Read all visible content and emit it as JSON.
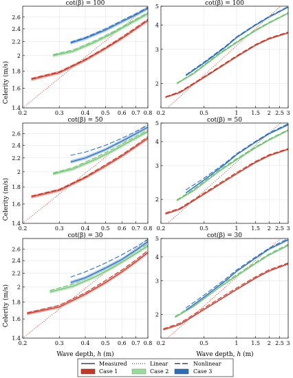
{
  "figure": {
    "ylabel": "Celerity (m/s)",
    "xlabel_main": "Wave depth, ",
    "xlabel_var": "h",
    "xlabel_unit": " (m)",
    "legend": {
      "line_items": [
        "Measured",
        "Linear",
        "Nonlinear"
      ],
      "case_items": [
        "Case 1",
        "Case 2",
        "Case 3"
      ]
    },
    "colors": {
      "case1": "#c0392b",
      "case2": "#6fbf73",
      "case3": "#2e6db4",
      "case1_band": "#e8a8a0",
      "case2_band": "#b9e3b9",
      "case3_band": "#9fc2e6"
    }
  },
  "chart_data": [
    {
      "type": "line",
      "title": "cot(β) = 100",
      "xscale": "log",
      "yscale": "log",
      "xlim": [
        0.2,
        0.8
      ],
      "ylim": [
        1.4,
        2.8
      ],
      "xticks": [
        "0.2",
        "0.3",
        "0.4",
        "0.5",
        "0.6",
        "0.7",
        "0.8"
      ],
      "yticks": [
        "1.4",
        "1.6",
        "1.8",
        "2",
        "2.2",
        "2.4",
        "2.6"
      ],
      "linear": {
        "x": [
          0.2,
          0.4,
          0.6,
          0.8
        ],
        "y": [
          1.4,
          1.98,
          2.42,
          2.8
        ]
      },
      "series": [
        {
          "name": "Case 1",
          "measured": {
            "x": [
              0.22,
              0.3,
              0.4,
              0.5,
              0.6,
              0.7,
              0.8
            ],
            "y": [
              1.7,
              1.78,
              1.94,
              2.1,
              2.25,
              2.4,
              2.54
            ]
          },
          "nonlinear": {
            "x": [
              0.22,
              0.3,
              0.4,
              0.5,
              0.6,
              0.7,
              0.8
            ],
            "y": [
              1.71,
              1.79,
              1.95,
              2.11,
              2.27,
              2.42,
              2.56
            ]
          }
        },
        {
          "name": "Case 2",
          "measured": {
            "x": [
              0.28,
              0.35,
              0.45,
              0.55,
              0.65,
              0.8
            ],
            "y": [
              2.0,
              2.06,
              2.2,
              2.34,
              2.48,
              2.66
            ]
          },
          "nonlinear": {
            "x": [
              0.28,
              0.35,
              0.45,
              0.55,
              0.65,
              0.8
            ],
            "y": [
              2.01,
              2.08,
              2.22,
              2.36,
              2.5,
              2.68
            ]
          }
        },
        {
          "name": "Case 3",
          "measured": {
            "x": [
              0.34,
              0.4,
              0.5,
              0.6,
              0.7,
              0.8
            ],
            "y": [
              2.18,
              2.25,
              2.38,
              2.52,
              2.64,
              2.76
            ]
          },
          "nonlinear": {
            "x": [
              0.34,
              0.4,
              0.5,
              0.6,
              0.7,
              0.8
            ],
            "y": [
              2.19,
              2.26,
              2.4,
              2.54,
              2.66,
              2.78
            ]
          }
        }
      ]
    },
    {
      "type": "line",
      "title": "cot(β) = 100",
      "xscale": "log",
      "yscale": "log",
      "xlim": [
        0.2,
        3
      ],
      "ylim": [
        1.5,
        5
      ],
      "xticks": [
        "0.2",
        "0.5",
        "1",
        "1.5",
        "2",
        "2.5",
        "3"
      ],
      "yticks": [
        "2",
        "3",
        "4",
        "5"
      ],
      "linear": {
        "x": [
          0.2,
          0.5,
          1,
          2,
          3
        ],
        "y": [
          1.4,
          2.21,
          3.13,
          4.43,
          5.42
        ]
      },
      "series": [
        {
          "name": "Case 1",
          "measured": {
            "x": [
              0.22,
              0.3,
              0.5,
              1,
              1.5,
              2,
              3
            ],
            "y": [
              1.7,
              1.8,
              2.15,
              2.75,
              3.15,
              3.4,
              3.65
            ]
          },
          "nonlinear": {
            "x": [
              0.22,
              0.3,
              0.5,
              1,
              1.5,
              2,
              3
            ],
            "y": [
              1.71,
              1.82,
              2.17,
              2.78,
              3.18,
              3.43,
              3.68
            ]
          }
        },
        {
          "name": "Case 2",
          "measured": {
            "x": [
              0.28,
              0.4,
              0.7,
              1,
              1.5,
              2,
              3
            ],
            "y": [
              2.0,
              2.25,
              2.85,
              3.25,
              3.75,
              4.1,
              4.6
            ]
          },
          "nonlinear": {
            "x": [
              0.28,
              0.4,
              0.7,
              1,
              1.5,
              2,
              3
            ],
            "y": [
              2.01,
              2.27,
              2.88,
              3.28,
              3.78,
              4.13,
              4.63
            ]
          }
        },
        {
          "name": "Case 3",
          "measured": {
            "x": [
              0.34,
              0.5,
              0.8,
              1,
              1.5,
              2,
              3
            ],
            "y": [
              2.2,
              2.55,
              3.1,
              3.45,
              4.0,
              4.4,
              4.95
            ]
          },
          "nonlinear": {
            "x": [
              0.34,
              0.5,
              0.8,
              1,
              1.5,
              2,
              3
            ],
            "y": [
              2.22,
              2.58,
              3.13,
              3.48,
              4.03,
              4.43,
              4.98
            ]
          }
        }
      ]
    },
    {
      "type": "line",
      "title": "cot(β) = 50",
      "xscale": "log",
      "yscale": "log",
      "xlim": [
        0.2,
        0.8
      ],
      "ylim": [
        1.4,
        2.8
      ],
      "xticks": [
        "0.2",
        "0.3",
        "0.4",
        "0.5",
        "0.6",
        "0.7",
        "0.8"
      ],
      "yticks": [
        "1.4",
        "1.6",
        "1.8",
        "2",
        "2.2",
        "2.4",
        "2.6"
      ],
      "linear": {
        "x": [
          0.2,
          0.4,
          0.6,
          0.8
        ],
        "y": [
          1.4,
          1.98,
          2.42,
          2.8
        ]
      },
      "series": [
        {
          "name": "Case 1",
          "measured": {
            "x": [
              0.22,
              0.3,
              0.4,
              0.5,
              0.6,
              0.7,
              0.8
            ],
            "y": [
              1.68,
              1.76,
              1.92,
              2.08,
              2.23,
              2.38,
              2.52
            ]
          },
          "nonlinear": {
            "x": [
              0.22,
              0.3,
              0.4,
              0.5,
              0.6,
              0.7,
              0.8
            ],
            "y": [
              1.69,
              1.77,
              1.93,
              2.1,
              2.25,
              2.4,
              2.55
            ]
          }
        },
        {
          "name": "Case 2",
          "measured": {
            "x": [
              0.28,
              0.35,
              0.45,
              0.55,
              0.65,
              0.8
            ],
            "y": [
              1.97,
              2.04,
              2.18,
              2.32,
              2.46,
              2.64
            ]
          },
          "nonlinear": {
            "x": [
              0.28,
              0.35,
              0.45,
              0.55,
              0.65,
              0.8
            ],
            "y": [
              1.98,
              2.06,
              2.21,
              2.35,
              2.49,
              2.67
            ]
          }
        },
        {
          "name": "Case 3",
          "measured": {
            "x": [
              0.34,
              0.4,
              0.5,
              0.6,
              0.7,
              0.8
            ],
            "y": [
              2.14,
              2.2,
              2.33,
              2.47,
              2.6,
              2.72
            ]
          },
          "nonlinear": {
            "x": [
              0.34,
              0.4,
              0.5,
              0.6,
              0.7,
              0.8
            ],
            "y": [
              2.24,
              2.29,
              2.4,
              2.52,
              2.64,
              2.76
            ]
          }
        }
      ]
    },
    {
      "type": "line",
      "title": "cot(β) = 50",
      "xscale": "log",
      "yscale": "log",
      "xlim": [
        0.2,
        3
      ],
      "ylim": [
        1.5,
        5
      ],
      "xticks": [
        "0.2",
        "0.5",
        "1",
        "1.5",
        "2",
        "2.5",
        "3"
      ],
      "yticks": [
        "2",
        "3",
        "4",
        "5"
      ],
      "linear": {
        "x": [
          0.2,
          0.5,
          1,
          2,
          3
        ],
        "y": [
          1.4,
          2.21,
          3.13,
          4.43,
          5.42
        ]
      },
      "series": [
        {
          "name": "Case 1",
          "measured": {
            "x": [
              0.22,
              0.3,
              0.5,
              1,
              1.5,
              2,
              3
            ],
            "y": [
              1.68,
              1.78,
              2.13,
              2.72,
              3.12,
              3.38,
              3.65
            ]
          },
          "nonlinear": {
            "x": [
              0.22,
              0.3,
              0.5,
              1,
              1.5,
              2,
              3
            ],
            "y": [
              1.7,
              1.8,
              2.16,
              2.76,
              3.16,
              3.42,
              3.68
            ]
          }
        },
        {
          "name": "Case 2",
          "measured": {
            "x": [
              0.28,
              0.4,
              0.7,
              1,
              1.5,
              2,
              3
            ],
            "y": [
              1.97,
              2.22,
              2.82,
              3.22,
              3.72,
              4.08,
              4.58
            ]
          },
          "nonlinear": {
            "x": [
              0.28,
              0.4,
              0.7,
              1,
              1.5,
              2,
              3
            ],
            "y": [
              1.99,
              2.25,
              2.86,
              3.26,
              3.76,
              4.12,
              4.62
            ]
          }
        },
        {
          "name": "Case 3",
          "measured": {
            "x": [
              0.34,
              0.5,
              0.8,
              1,
              1.5,
              2,
              3
            ],
            "y": [
              2.16,
              2.52,
              3.08,
              3.42,
              3.98,
              4.4,
              4.9
            ]
          },
          "nonlinear": {
            "x": [
              0.34,
              0.5,
              0.8,
              1,
              1.5,
              2,
              3
            ],
            "y": [
              2.24,
              2.58,
              3.12,
              3.46,
              4.02,
              4.44,
              4.96
            ]
          }
        }
      ]
    },
    {
      "type": "line",
      "title": "cot(β) = 30",
      "xscale": "log",
      "yscale": "log",
      "xlim": [
        0.2,
        0.8
      ],
      "ylim": [
        1.4,
        2.8
      ],
      "xticks": [
        "0.2",
        "0.3",
        "0.4",
        "0.5",
        "0.6",
        "0.7",
        "0.8"
      ],
      "yticks": [
        "1.4",
        "1.6",
        "1.8",
        "2",
        "2.2",
        "2.4",
        "2.6"
      ],
      "linear": {
        "x": [
          0.2,
          0.4,
          0.6,
          0.8
        ],
        "y": [
          1.4,
          1.98,
          2.42,
          2.8
        ]
      },
      "series": [
        {
          "name": "Case 1",
          "measured": {
            "x": [
              0.21,
              0.3,
              0.4,
              0.5,
              0.6,
              0.7,
              0.8
            ],
            "y": [
              1.66,
              1.74,
              1.9,
              2.06,
              2.22,
              2.38,
              2.54
            ]
          },
          "nonlinear": {
            "x": [
              0.21,
              0.3,
              0.4,
              0.5,
              0.6,
              0.7,
              0.8
            ],
            "y": [
              1.67,
              1.76,
              1.92,
              2.09,
              2.25,
              2.41,
              2.58
            ]
          }
        },
        {
          "name": "Case 2",
          "measured": {
            "x": [
              0.27,
              0.35,
              0.45,
              0.55,
              0.65,
              0.8
            ],
            "y": [
              1.93,
              2.01,
              2.15,
              2.3,
              2.45,
              2.66
            ]
          },
          "nonlinear": {
            "x": [
              0.27,
              0.35,
              0.45,
              0.55,
              0.65,
              0.8
            ],
            "y": [
              1.95,
              2.04,
              2.19,
              2.34,
              2.49,
              2.7
            ]
          }
        },
        {
          "name": "Case 3",
          "measured": {
            "x": [
              0.34,
              0.4,
              0.5,
              0.6,
              0.7,
              0.8
            ],
            "y": [
              2.06,
              2.13,
              2.28,
              2.42,
              2.58,
              2.74
            ]
          },
          "nonlinear": {
            "x": [
              0.34,
              0.4,
              0.5,
              0.6,
              0.7,
              0.8
            ],
            "y": [
              2.14,
              2.22,
              2.36,
              2.5,
              2.64,
              2.78
            ]
          }
        }
      ]
    },
    {
      "type": "line",
      "title": "cot(β) = 30",
      "xscale": "log",
      "yscale": "log",
      "xlim": [
        0.2,
        3
      ],
      "ylim": [
        1.5,
        5
      ],
      "xticks": [
        "0.2",
        "0.5",
        "1",
        "1.5",
        "2",
        "2.5",
        "3"
      ],
      "yticks": [
        "2",
        "3",
        "4",
        "5"
      ],
      "linear": {
        "x": [
          0.2,
          0.5,
          1,
          2,
          3
        ],
        "y": [
          1.4,
          2.21,
          3.13,
          4.43,
          5.42
        ]
      },
      "series": [
        {
          "name": "Case 1",
          "measured": {
            "x": [
              0.21,
              0.3,
              0.5,
              1,
              1.5,
              2,
              3
            ],
            "y": [
              1.66,
              1.77,
              2.12,
              2.7,
              3.1,
              3.38,
              3.68
            ]
          },
          "nonlinear": {
            "x": [
              0.21,
              0.3,
              0.5,
              1,
              1.5,
              2,
              3
            ],
            "y": [
              1.68,
              1.8,
              2.16,
              2.75,
              3.15,
              3.43,
              3.72
            ]
          }
        },
        {
          "name": "Case 2",
          "measured": {
            "x": [
              0.27,
              0.4,
              0.7,
              1,
              1.5,
              2,
              3
            ],
            "y": [
              1.93,
              2.2,
              2.78,
              3.18,
              3.7,
              4.1,
              4.6
            ]
          },
          "nonlinear": {
            "x": [
              0.27,
              0.4,
              0.7,
              1,
              1.5,
              2,
              3
            ],
            "y": [
              1.95,
              2.24,
              2.83,
              3.23,
              3.75,
              4.15,
              4.66
            ]
          }
        },
        {
          "name": "Case 3",
          "measured": {
            "x": [
              0.34,
              0.5,
              0.8,
              1,
              1.5,
              2,
              3
            ],
            "y": [
              2.1,
              2.46,
              3.02,
              3.36,
              3.95,
              4.4,
              4.92
            ]
          },
          "nonlinear": {
            "x": [
              0.34,
              0.5,
              0.8,
              1,
              1.5,
              2,
              3
            ],
            "y": [
              2.16,
              2.52,
              3.08,
              3.42,
              4.0,
              4.45,
              5.0
            ]
          }
        }
      ]
    }
  ]
}
